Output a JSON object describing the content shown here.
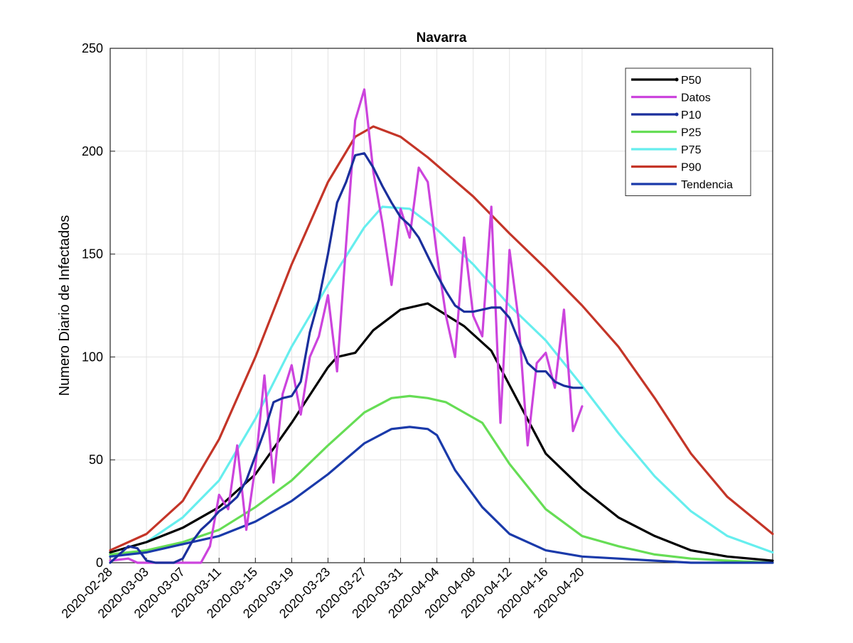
{
  "chart_data": {
    "type": "line",
    "title": "Navarra",
    "xlabel": "",
    "ylabel": "Numero Diario de Infectados",
    "ylim": [
      0,
      250
    ],
    "yticks": [
      0,
      50,
      100,
      150,
      200,
      250
    ],
    "xlim": [
      "2020-02-28",
      "2020-05-11"
    ],
    "xtick_labels": [
      "2020-02-28",
      "2020-03-03",
      "2020-03-07",
      "2020-03-11",
      "2020-03-15",
      "2020-03-19",
      "2020-03-23",
      "2020-03-27",
      "2020-03-31",
      "2020-04-04",
      "2020-04-08",
      "2020-04-12",
      "2020-04-16",
      "2020-04-20"
    ],
    "grid": true,
    "legend_position": "top-right",
    "series": [
      {
        "name": "P50",
        "color": "#000000",
        "marker": true,
        "x": [
          "2020-02-28",
          "2020-03-03",
          "2020-03-07",
          "2020-03-11",
          "2020-03-15",
          "2020-03-19",
          "2020-03-23",
          "2020-03-24",
          "2020-03-26",
          "2020-03-28",
          "2020-03-31",
          "2020-04-03",
          "2020-04-07",
          "2020-04-10",
          "2020-04-13",
          "2020-04-16",
          "2020-04-20",
          "2020-04-24",
          "2020-04-28",
          "2020-05-02",
          "2020-05-06",
          "2020-05-11"
        ],
        "values": [
          5,
          10,
          17,
          27,
          43,
          68,
          95,
          100,
          102,
          113,
          123,
          126,
          115,
          103,
          78,
          53,
          36,
          22,
          13,
          6,
          3,
          1
        ]
      },
      {
        "name": " Datos",
        "color": "#cc44dd",
        "marker": false,
        "x": [
          "2020-02-28",
          "2020-03-01",
          "2020-03-02",
          "2020-03-03",
          "2020-03-04",
          "2020-03-05",
          "2020-03-06",
          "2020-03-07",
          "2020-03-08",
          "2020-03-09",
          "2020-03-10",
          "2020-03-11",
          "2020-03-12",
          "2020-03-13",
          "2020-03-14",
          "2020-03-15",
          "2020-03-16",
          "2020-03-17",
          "2020-03-18",
          "2020-03-19",
          "2020-03-20",
          "2020-03-21",
          "2020-03-22",
          "2020-03-23",
          "2020-03-24",
          "2020-03-25",
          "2020-03-26",
          "2020-03-27",
          "2020-03-28",
          "2020-03-29",
          "2020-03-30",
          "2020-03-31",
          "2020-04-01",
          "2020-04-02",
          "2020-04-03",
          "2020-04-04",
          "2020-04-05",
          "2020-04-06",
          "2020-04-07",
          "2020-04-08",
          "2020-04-09",
          "2020-04-10",
          "2020-04-11",
          "2020-04-12",
          "2020-04-13",
          "2020-04-14",
          "2020-04-15",
          "2020-04-16",
          "2020-04-17",
          "2020-04-18",
          "2020-04-19",
          "2020-04-20"
        ],
        "values": [
          1,
          2,
          0,
          0,
          0,
          0,
          0,
          0,
          0,
          0,
          8,
          33,
          26,
          57,
          16,
          47,
          91,
          39,
          82,
          96,
          72,
          100,
          110,
          130,
          93,
          155,
          215,
          230,
          190,
          165,
          135,
          172,
          158,
          192,
          185,
          150,
          120,
          100,
          158,
          120,
          110,
          173,
          68,
          152,
          118,
          57,
          97,
          102,
          85,
          123,
          64,
          76
        ]
      },
      {
        "name": "P10",
        "color": "#1a2f9c",
        "marker": true,
        "x": [
          "2020-02-28",
          "2020-03-01",
          "2020-03-02",
          "2020-03-03",
          "2020-03-04",
          "2020-03-05",
          "2020-03-06",
          "2020-03-07",
          "2020-03-08",
          "2020-03-09",
          "2020-03-10",
          "2020-03-11",
          "2020-03-12",
          "2020-03-13",
          "2020-03-14",
          "2020-03-15",
          "2020-03-16",
          "2020-03-17",
          "2020-03-18",
          "2020-03-19",
          "2020-03-20",
          "2020-03-21",
          "2020-03-22",
          "2020-03-23",
          "2020-03-24",
          "2020-03-25",
          "2020-03-26",
          "2020-03-27",
          "2020-03-28",
          "2020-03-29",
          "2020-03-30",
          "2020-03-31",
          "2020-04-01",
          "2020-04-02",
          "2020-04-03",
          "2020-04-04",
          "2020-04-05",
          "2020-04-06",
          "2020-04-07",
          "2020-04-08",
          "2020-04-09",
          "2020-04-10",
          "2020-04-11",
          "2020-04-12",
          "2020-04-13",
          "2020-04-14",
          "2020-04-15",
          "2020-04-16",
          "2020-04-17",
          "2020-04-18",
          "2020-04-19",
          "2020-04-20"
        ],
        "values": [
          0,
          8,
          7,
          1,
          0,
          0,
          0,
          2,
          10,
          16,
          20,
          25,
          28,
          32,
          40,
          52,
          64,
          78,
          80,
          81,
          88,
          112,
          128,
          150,
          175,
          185,
          198,
          199,
          192,
          183,
          175,
          168,
          164,
          158,
          149,
          140,
          132,
          125,
          122,
          122,
          123,
          124,
          124,
          119,
          108,
          97,
          93,
          93,
          88,
          86,
          85,
          85
        ]
      },
      {
        "name": "P25",
        "color": "#66dd55",
        "marker": false,
        "x": [
          "2020-02-28",
          "2020-03-03",
          "2020-03-07",
          "2020-03-11",
          "2020-03-15",
          "2020-03-19",
          "2020-03-23",
          "2020-03-27",
          "2020-03-30",
          "2020-04-01",
          "2020-04-03",
          "2020-04-05",
          "2020-04-09",
          "2020-04-12",
          "2020-04-16",
          "2020-04-20",
          "2020-04-24",
          "2020-04-28",
          "2020-05-02",
          "2020-05-06",
          "2020-05-11"
        ],
        "values": [
          4,
          6,
          10,
          16,
          27,
          40,
          57,
          73,
          80,
          81,
          80,
          78,
          68,
          48,
          26,
          13,
          8,
          4,
          2,
          1,
          0
        ]
      },
      {
        "name": "P75",
        "color": "#66eeee",
        "marker": false,
        "x": [
          "2020-02-28",
          "2020-03-03",
          "2020-03-07",
          "2020-03-11",
          "2020-03-15",
          "2020-03-19",
          "2020-03-23",
          "2020-03-27",
          "2020-03-29",
          "2020-04-01",
          "2020-04-04",
          "2020-04-08",
          "2020-04-12",
          "2020-04-16",
          "2020-04-20",
          "2020-04-24",
          "2020-04-28",
          "2020-05-02",
          "2020-05-06",
          "2020-05-11"
        ],
        "values": [
          5,
          10,
          22,
          40,
          70,
          105,
          135,
          163,
          173,
          172,
          162,
          145,
          125,
          108,
          86,
          63,
          42,
          25,
          13,
          5
        ]
      },
      {
        "name": "P90",
        "color": "#c43528",
        "marker": false,
        "x": [
          "2020-02-28",
          "2020-03-03",
          "2020-03-07",
          "2020-03-11",
          "2020-03-15",
          "2020-03-19",
          "2020-03-23",
          "2020-03-26",
          "2020-03-28",
          "2020-03-31",
          "2020-04-03",
          "2020-04-08",
          "2020-04-12",
          "2020-04-16",
          "2020-04-20",
          "2020-04-24",
          "2020-04-28",
          "2020-05-02",
          "2020-05-06",
          "2020-05-11"
        ],
        "values": [
          6,
          14,
          30,
          60,
          100,
          145,
          185,
          207,
          212,
          207,
          197,
          178,
          160,
          143,
          125,
          105,
          80,
          53,
          32,
          14
        ]
      },
      {
        "name": "Tendencia",
        "color": "#1a3aaa",
        "marker": false,
        "x": [
          "2020-02-28",
          "2020-03-03",
          "2020-03-07",
          "2020-03-11",
          "2020-03-15",
          "2020-03-19",
          "2020-03-23",
          "2020-03-27",
          "2020-03-30",
          "2020-04-01",
          "2020-04-03",
          "2020-04-04",
          "2020-04-06",
          "2020-04-09",
          "2020-04-12",
          "2020-04-16",
          "2020-04-20",
          "2020-04-24",
          "2020-04-28",
          "2020-05-02",
          "2020-05-06",
          "2020-05-11"
        ],
        "values": [
          3,
          5,
          9,
          13,
          20,
          30,
          43,
          58,
          65,
          66,
          65,
          62,
          45,
          27,
          14,
          6,
          3,
          2,
          1,
          0,
          0,
          0
        ]
      }
    ]
  }
}
